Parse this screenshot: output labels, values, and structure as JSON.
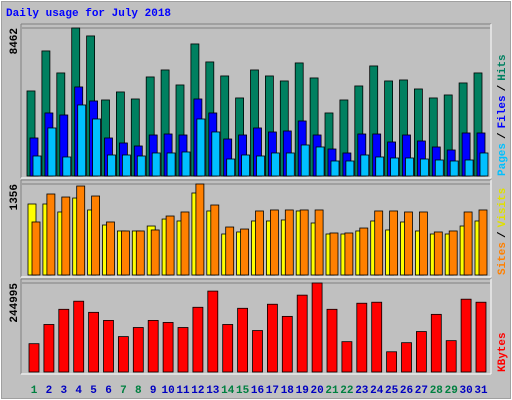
{
  "chart_data": {
    "type": "bar",
    "title": "Daily usage for July 2018",
    "categories": [
      "1",
      "2",
      "3",
      "4",
      "5",
      "6",
      "7",
      "8",
      "9",
      "10",
      "11",
      "12",
      "13",
      "14",
      "15",
      "16",
      "17",
      "18",
      "19",
      "20",
      "21",
      "22",
      "23",
      "24",
      "25",
      "26",
      "27",
      "28",
      "29",
      "30",
      "31"
    ],
    "category_colors": [
      "#008040",
      "#0000c0",
      "#0000c0",
      "#0000c0",
      "#0000c0",
      "#0000c0",
      "#008040",
      "#008040",
      "#0000c0",
      "#0000c0",
      "#0000c0",
      "#0000c0",
      "#0000c0",
      "#008040",
      "#008040",
      "#0000c0",
      "#0000c0",
      "#0000c0",
      "#0000c0",
      "#0000c0",
      "#008040",
      "#008040",
      "#0000c0",
      "#0000c0",
      "#0000c0",
      "#0000c0",
      "#0000c0",
      "#008040",
      "#008040",
      "#0000c0",
      "#0000c0"
    ],
    "grid": true,
    "legend_separator": "/",
    "panels": [
      {
        "ylim": [
          0,
          8462
        ],
        "yticks": [
          8462
        ],
        "series": [
          {
            "name": "Hits",
            "color": "#008060",
            "values": [
              4862,
              7150,
              5892,
              8462,
              8008,
              4347,
              4805,
              4404,
              5663,
              6063,
              5205,
              7550,
              6521,
              5720,
              4462,
              6063,
              5720,
              5434,
              6464,
              5606,
              3604,
              4347,
              5148,
              6292,
              5434,
              5491,
              4976,
              4462,
              4633,
              5320,
              5892
            ]
          },
          {
            "name": "Files",
            "color": "#0000ff",
            "values": [
              2174,
              3604,
              3489,
              5091,
              4290,
              2174,
              1888,
              1716,
              2345,
              2402,
              2345,
              4404,
              3604,
              2116,
              2345,
              2746,
              2517,
              2574,
              3146,
              2345,
              1544,
              1316,
              2402,
              2402,
              1945,
              2345,
              2002,
              1659,
              1487,
              2460,
              2460
            ]
          },
          {
            "name": "Pages",
            "color": "#00c0ff",
            "values": [
              1144,
              2746,
              1087,
              4061,
              3260,
              1201,
              1201,
              1144,
              1316,
              1316,
              1373,
              3260,
              2517,
              972,
              1201,
              1144,
              1316,
              1316,
              1773,
              1659,
              858,
              858,
              1201,
              1087,
              1030,
              1030,
              972,
              915,
              858,
              915,
              1316
            ]
          }
        ]
      },
      {
        "ylim": [
          0,
          1356
        ],
        "yticks": [
          1356
        ],
        "series": [
          {
            "name": "Visits",
            "color": "#ffff00",
            "values": [
              1058,
              1058,
              939,
              1147,
              969,
              745,
              656,
              656,
              730,
              834,
              805,
              1222,
              954,
              611,
              641,
              805,
              805,
              820,
              954,
              775,
              611,
              611,
              656,
              805,
              671,
              790,
              656,
              611,
              611,
              730,
              805
            ]
          },
          {
            "name": "Sites",
            "color": "#ff8000",
            "values": [
              790,
              1207,
              1162,
              1326,
              1177,
              790,
              656,
              656,
              671,
              879,
              939,
              1356,
              1043,
              715,
              685,
              954,
              969,
              969,
              969,
              969,
              626,
              626,
              700,
              954,
              954,
              939,
              939,
              641,
              656,
              939,
              969
            ]
          }
        ]
      },
      {
        "ylim": [
          0,
          244995
        ],
        "yticks": [
          244995
        ],
        "series": [
          {
            "name": "KBytes",
            "color": "#ff0000",
            "values": [
              77952,
              130848,
              172608,
              194880,
              164256,
              141984,
              97440,
              122496,
              141984,
              136416,
              122496,
              178176,
              222720,
              130848,
              175392,
              114144,
              186528,
              153120,
              211584,
              244995,
              172608,
              83520,
              189312,
              192096,
              55680,
              80736,
              111360,
              158688,
              86304,
              200448,
              192096
            ]
          }
        ]
      }
    ]
  }
}
